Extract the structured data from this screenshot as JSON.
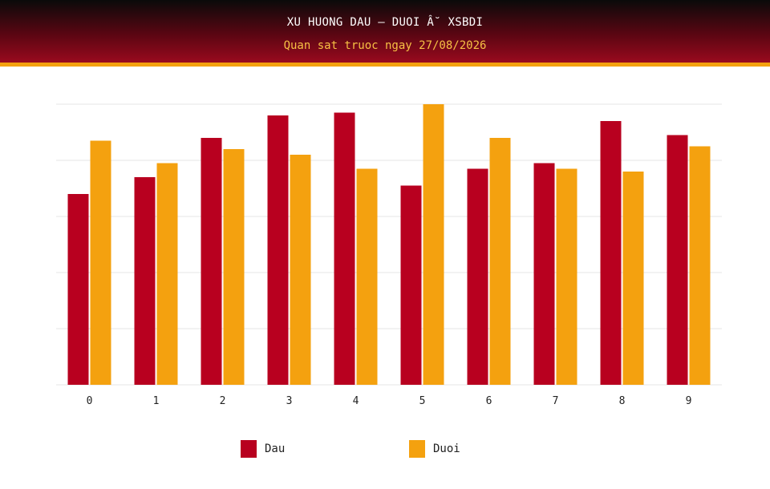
{
  "header": {
    "title": "XU HUONG DAU – DUOI Â˘ XSBDI",
    "subtitle": "Quan sat truoc ngay 27/08/2026"
  },
  "colors": {
    "dau": "#b8001f",
    "duoi": "#f4a10f",
    "grid": "#e6e6e6"
  },
  "chart_data": {
    "type": "bar",
    "title": "XU HUONG DAU – DUOI Â˘ XSBDI",
    "subtitle": "Quan sat truoc ngay 27/08/2026",
    "categories": [
      "0",
      "1",
      "2",
      "3",
      "4",
      "5",
      "6",
      "7",
      "8",
      "9"
    ],
    "series": [
      {
        "name": "Dau",
        "values": [
          34,
          37,
          44,
          48,
          48.5,
          35.5,
          38.5,
          39.5,
          47,
          44.5
        ]
      },
      {
        "name": "Duoi",
        "values": [
          43.5,
          39.5,
          42,
          41,
          38.5,
          50,
          44,
          38.5,
          38,
          42.5
        ]
      }
    ],
    "ylim": [
      0,
      50
    ],
    "gridlines": [
      0,
      10,
      20,
      30,
      40,
      50
    ],
    "grid": true,
    "legend": "bottom"
  }
}
